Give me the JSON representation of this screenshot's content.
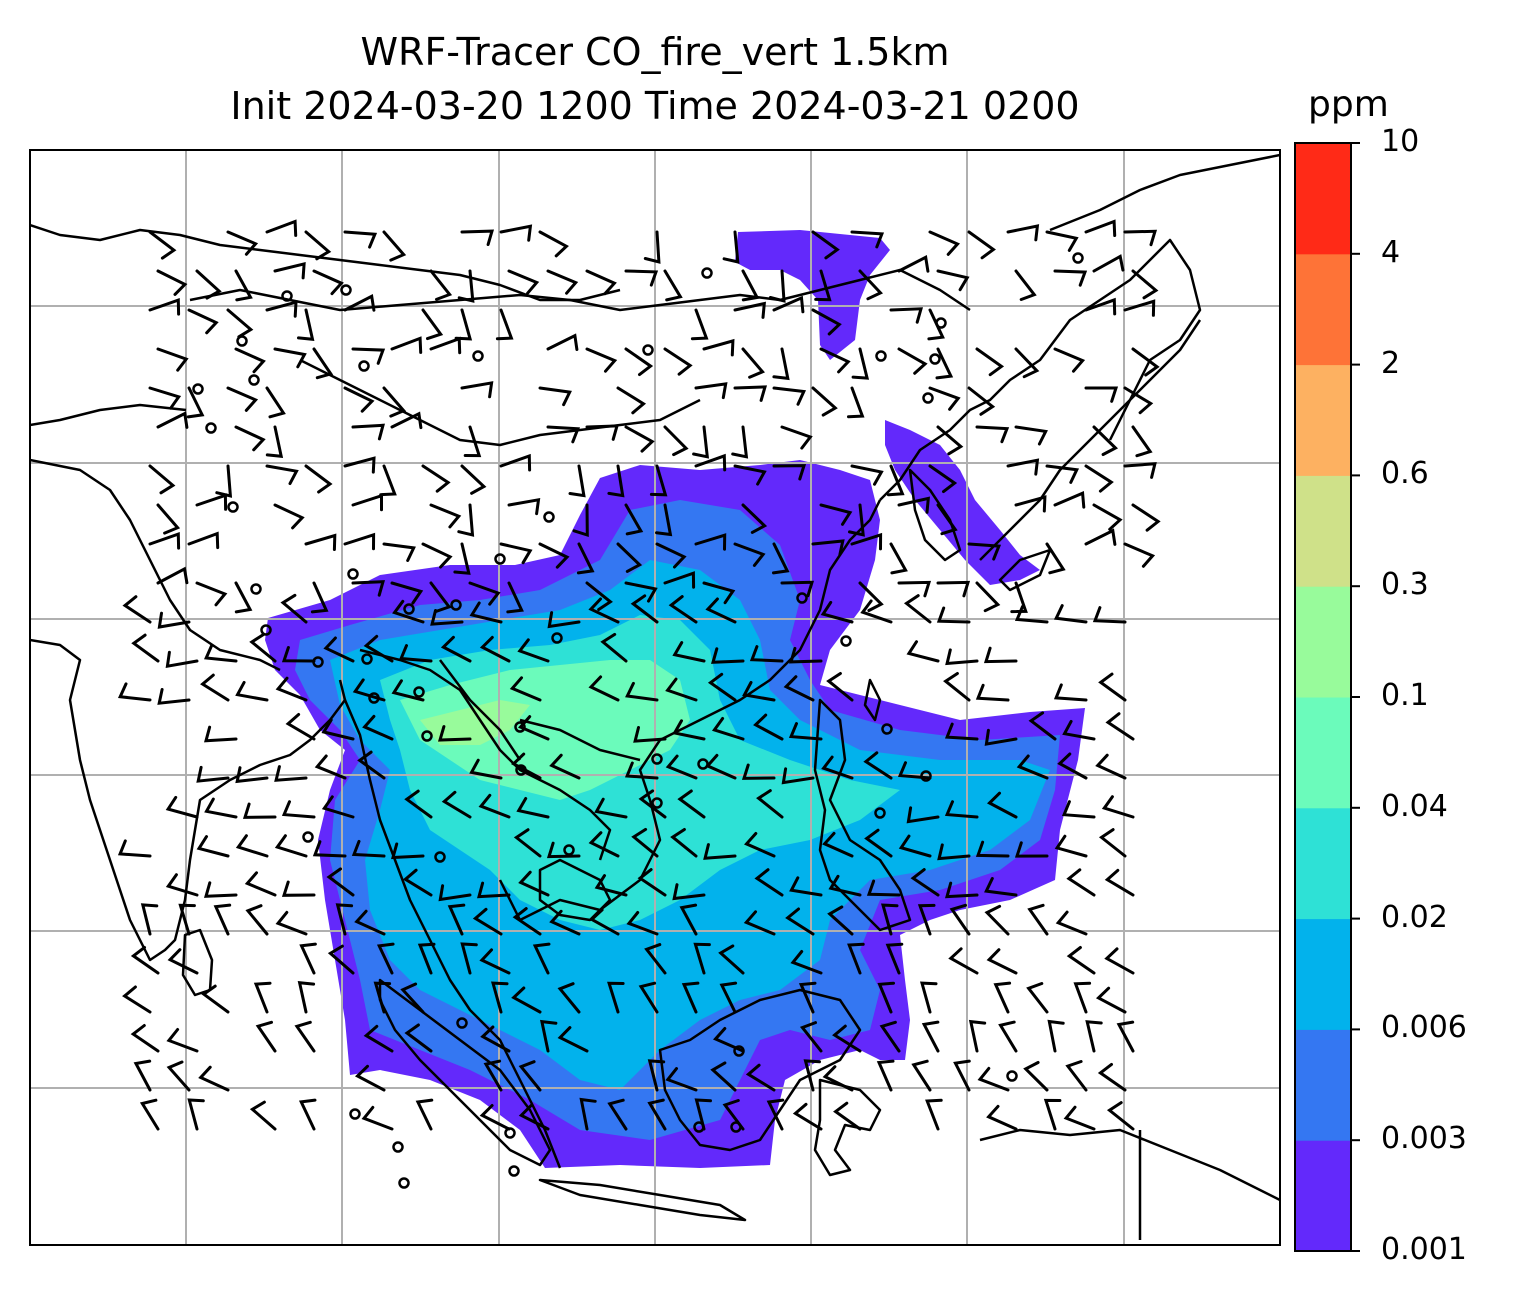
{
  "title": {
    "line1": "WRF-Tracer CO_fire_vert 1.5km",
    "line2": "Init 2024-03-20 1200 Time 2024-03-21 0200"
  },
  "colorbar": {
    "units": "ppm",
    "ticks": [
      "0.001",
      "0.003",
      "0.006",
      "0.02",
      "0.04",
      "0.1",
      "0.3",
      "0.6",
      "2",
      "4",
      "10"
    ],
    "colors": [
      "#6329fb",
      "#3477f2",
      "#02b2ec",
      "#2ee1d6",
      "#6bfbbb",
      "#98fb9b",
      "#cfe189",
      "#fdb161",
      "#fe7337",
      "#ff2a17"
    ]
  },
  "map": {
    "gridlines": true,
    "features": [
      "coastlines",
      "borders",
      "wind-barbs",
      "calm-circles"
    ]
  }
}
